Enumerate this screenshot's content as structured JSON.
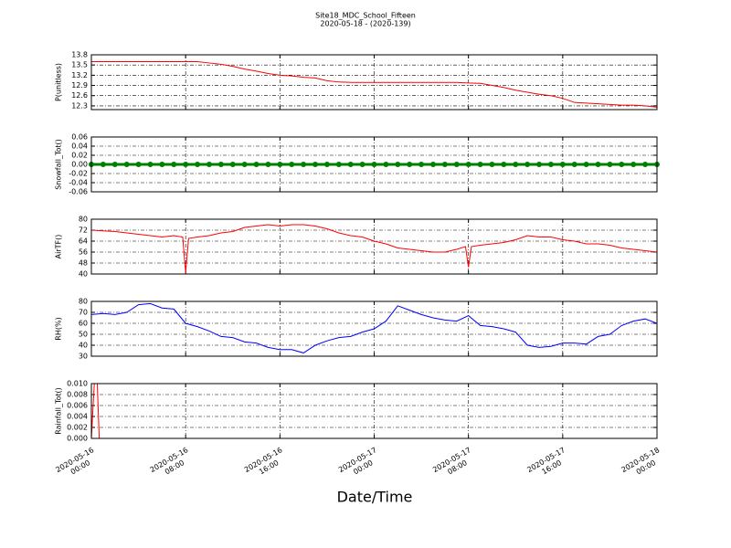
{
  "title": "Site18_MDC_School_Fifteen",
  "subtitle": "2020-05-18 - (2020-139)",
  "chart_data": [
    {
      "type": "line",
      "y_label": "P(unitless)",
      "color": "#ff0000",
      "grid": true,
      "xlim": [
        "2020-05-16 00:00",
        "2020-05-18 00:00"
      ],
      "xticks": [
        "2020-05-16 00:00",
        "2020-05-16 08:00",
        "2020-05-16 16:00",
        "2020-05-17 00:00",
        "2020-05-17 08:00",
        "2020-05-17 16:00",
        "2020-05-18 00:00"
      ],
      "ylim": [
        12.19,
        13.8
      ],
      "yticks": [
        12.3,
        12.6,
        12.9,
        13.2,
        13.5,
        13.8
      ],
      "x": [
        "2020-05-16 00:00",
        "2020-05-16 01:00",
        "2020-05-16 02:00",
        "2020-05-16 03:00",
        "2020-05-16 04:00",
        "2020-05-16 05:00",
        "2020-05-16 06:00",
        "2020-05-16 07:00",
        "2020-05-16 08:00",
        "2020-05-16 09:00",
        "2020-05-16 10:00",
        "2020-05-16 11:00",
        "2020-05-16 12:00",
        "2020-05-16 13:00",
        "2020-05-16 14:00",
        "2020-05-16 15:00",
        "2020-05-16 16:00",
        "2020-05-16 17:00",
        "2020-05-16 18:00",
        "2020-05-16 19:00",
        "2020-05-16 20:00",
        "2020-05-16 21:00",
        "2020-05-16 22:00",
        "2020-05-16 23:00",
        "2020-05-17 00:00",
        "2020-05-17 01:00",
        "2020-05-17 02:00",
        "2020-05-17 03:00",
        "2020-05-17 04:00",
        "2020-05-17 05:00",
        "2020-05-17 06:00",
        "2020-05-17 07:00",
        "2020-05-17 08:00",
        "2020-05-17 09:00",
        "2020-05-17 10:00",
        "2020-05-17 11:00",
        "2020-05-17 12:00",
        "2020-05-17 13:00",
        "2020-05-17 14:00",
        "2020-05-17 15:00",
        "2020-05-17 16:00",
        "2020-05-17 17:00",
        "2020-05-17 18:00",
        "2020-05-17 19:00",
        "2020-05-17 20:00",
        "2020-05-17 21:00",
        "2020-05-17 22:00",
        "2020-05-17 23:00",
        "2020-05-18 00:00"
      ],
      "values": [
        13.6,
        13.6,
        13.6,
        13.6,
        13.6,
        13.6,
        13.6,
        13.6,
        13.6,
        13.6,
        13.56,
        13.52,
        13.46,
        13.38,
        13.32,
        13.25,
        13.2,
        13.18,
        13.14,
        13.12,
        13.04,
        13.0,
        12.99,
        12.99,
        12.99,
        12.99,
        12.99,
        12.99,
        12.99,
        12.99,
        12.99,
        12.99,
        12.97,
        12.96,
        12.9,
        12.84,
        12.76,
        12.7,
        12.64,
        12.6,
        12.52,
        12.4,
        12.38,
        12.36,
        12.34,
        12.32,
        12.32,
        12.3,
        12.26
      ]
    },
    {
      "type": "scatter",
      "y_label": "Snowfall_Tot()",
      "color": "#008000",
      "grid": true,
      "xlim": [
        "2020-05-16 00:00",
        "2020-05-18 00:00"
      ],
      "xticks": [
        "2020-05-16 00:00",
        "2020-05-16 08:00",
        "2020-05-16 16:00",
        "2020-05-17 00:00",
        "2020-05-17 08:00",
        "2020-05-17 16:00",
        "2020-05-18 00:00"
      ],
      "ylim": [
        -0.06,
        0.06
      ],
      "yticks": [
        -0.06,
        -0.04,
        -0.02,
        {
          "value": 0,
          "label": "0.00"
        },
        0.02,
        0.04,
        0.06
      ],
      "x": [
        "2020-05-16 00:00",
        "2020-05-16 01:00",
        "2020-05-16 02:00",
        "2020-05-16 03:00",
        "2020-05-16 04:00",
        "2020-05-16 05:00",
        "2020-05-16 06:00",
        "2020-05-16 07:00",
        "2020-05-16 08:00",
        "2020-05-16 09:00",
        "2020-05-16 10:00",
        "2020-05-16 11:00",
        "2020-05-16 12:00",
        "2020-05-16 13:00",
        "2020-05-16 14:00",
        "2020-05-16 15:00",
        "2020-05-16 16:00",
        "2020-05-16 17:00",
        "2020-05-16 18:00",
        "2020-05-16 19:00",
        "2020-05-16 20:00",
        "2020-05-16 21:00",
        "2020-05-16 22:00",
        "2020-05-16 23:00",
        "2020-05-17 00:00",
        "2020-05-17 01:00",
        "2020-05-17 02:00",
        "2020-05-17 03:00",
        "2020-05-17 04:00",
        "2020-05-17 05:00",
        "2020-05-17 06:00",
        "2020-05-17 07:00",
        "2020-05-17 08:00",
        "2020-05-17 09:00",
        "2020-05-17 10:00",
        "2020-05-17 11:00",
        "2020-05-17 12:00",
        "2020-05-17 13:00",
        "2020-05-17 14:00",
        "2020-05-17 15:00",
        "2020-05-17 16:00",
        "2020-05-17 17:00",
        "2020-05-17 18:00",
        "2020-05-17 19:00",
        "2020-05-17 20:00",
        "2020-05-17 21:00",
        "2020-05-17 22:00",
        "2020-05-17 23:00",
        "2020-05-18 00:00"
      ],
      "values": [
        0,
        0,
        0,
        0,
        0,
        0,
        0,
        0,
        0,
        0,
        0,
        0,
        0,
        0,
        0,
        0,
        0,
        0,
        0,
        0,
        0,
        0,
        0,
        0,
        0,
        0,
        0,
        0,
        0,
        0,
        0,
        0,
        0,
        0,
        0,
        0,
        0,
        0,
        0,
        0,
        0,
        0,
        0,
        0,
        0,
        0,
        0,
        0,
        0
      ]
    },
    {
      "type": "line",
      "y_label": "AirTF()",
      "color": "#ff0000",
      "grid": true,
      "xlim": [
        "2020-05-16 00:00",
        "2020-05-18 00:00"
      ],
      "xticks": [
        "2020-05-16 00:00",
        "2020-05-16 08:00",
        "2020-05-16 16:00",
        "2020-05-17 00:00",
        "2020-05-17 08:00",
        "2020-05-17 16:00",
        "2020-05-18 00:00"
      ],
      "ylim": [
        40,
        80
      ],
      "yticks": [
        40,
        48,
        56,
        64,
        72,
        80
      ],
      "x": [
        "2020-05-16 00:00",
        "2020-05-16 01:00",
        "2020-05-16 02:00",
        "2020-05-16 03:00",
        "2020-05-16 04:00",
        "2020-05-16 05:00",
        "2020-05-16 06:00",
        "2020-05-16 07:00",
        "2020-05-16 07:45",
        "2020-05-16 08:00",
        "2020-05-16 08:15",
        "2020-05-16 09:00",
        "2020-05-16 10:00",
        "2020-05-16 11:00",
        "2020-05-16 12:00",
        "2020-05-16 13:00",
        "2020-05-16 14:00",
        "2020-05-16 15:00",
        "2020-05-16 16:00",
        "2020-05-16 17:00",
        "2020-05-16 18:00",
        "2020-05-16 19:00",
        "2020-05-16 20:00",
        "2020-05-16 21:00",
        "2020-05-16 22:00",
        "2020-05-16 23:00",
        "2020-05-17 00:00",
        "2020-05-17 01:00",
        "2020-05-17 02:00",
        "2020-05-17 03:00",
        "2020-05-17 04:00",
        "2020-05-17 05:00",
        "2020-05-17 06:00",
        "2020-05-17 07:00",
        "2020-05-17 07:45",
        "2020-05-17 08:00",
        "2020-05-17 08:15",
        "2020-05-17 09:00",
        "2020-05-17 10:00",
        "2020-05-17 11:00",
        "2020-05-17 12:00",
        "2020-05-17 13:00",
        "2020-05-17 14:00",
        "2020-05-17 15:00",
        "2020-05-17 16:00",
        "2020-05-17 17:00",
        "2020-05-17 18:00",
        "2020-05-17 19:00",
        "2020-05-17 20:00",
        "2020-05-17 21:00",
        "2020-05-17 22:00",
        "2020-05-17 23:00",
        "2020-05-18 00:00"
      ],
      "values": [
        72,
        71.5,
        71,
        70,
        69,
        68,
        67,
        68,
        67,
        41,
        66,
        67,
        68,
        70,
        71,
        74,
        75,
        76,
        75,
        76,
        76,
        75,
        73,
        70,
        68,
        67,
        64,
        62,
        59,
        58,
        57,
        56,
        56,
        58,
        60,
        45,
        60,
        61,
        62,
        63,
        65,
        68,
        67,
        67,
        65,
        64,
        62,
        62,
        61,
        59,
        58,
        57,
        56
      ]
    },
    {
      "type": "line",
      "y_label": "RH(%)",
      "color": "#0000ff",
      "grid": true,
      "xlim": [
        "2020-05-16 00:00",
        "2020-05-18 00:00"
      ],
      "xticks": [
        "2020-05-16 00:00",
        "2020-05-16 08:00",
        "2020-05-16 16:00",
        "2020-05-17 00:00",
        "2020-05-17 08:00",
        "2020-05-17 16:00",
        "2020-05-18 00:00"
      ],
      "ylim": [
        30,
        80
      ],
      "yticks": [
        30,
        40,
        50,
        60,
        70,
        80
      ],
      "x": [
        "2020-05-16 00:00",
        "2020-05-16 01:00",
        "2020-05-16 02:00",
        "2020-05-16 03:00",
        "2020-05-16 04:00",
        "2020-05-16 05:00",
        "2020-05-16 06:00",
        "2020-05-16 07:00",
        "2020-05-16 08:00",
        "2020-05-16 09:00",
        "2020-05-16 10:00",
        "2020-05-16 11:00",
        "2020-05-16 12:00",
        "2020-05-16 13:00",
        "2020-05-16 14:00",
        "2020-05-16 15:00",
        "2020-05-16 16:00",
        "2020-05-16 17:00",
        "2020-05-16 18:00",
        "2020-05-16 19:00",
        "2020-05-16 20:00",
        "2020-05-16 21:00",
        "2020-05-16 22:00",
        "2020-05-16 23:00",
        "2020-05-17 00:00",
        "2020-05-17 01:00",
        "2020-05-17 02:00",
        "2020-05-17 03:00",
        "2020-05-17 04:00",
        "2020-05-17 05:00",
        "2020-05-17 06:00",
        "2020-05-17 07:00",
        "2020-05-17 08:00",
        "2020-05-17 09:00",
        "2020-05-17 10:00",
        "2020-05-17 11:00",
        "2020-05-17 12:00",
        "2020-05-17 13:00",
        "2020-05-17 14:00",
        "2020-05-17 15:00",
        "2020-05-17 16:00",
        "2020-05-17 17:00",
        "2020-05-17 18:00",
        "2020-05-17 19:00",
        "2020-05-17 20:00",
        "2020-05-17 21:00",
        "2020-05-17 22:00",
        "2020-05-17 23:00",
        "2020-05-18 00:00"
      ],
      "values": [
        68,
        69,
        68,
        70,
        77,
        78,
        74,
        73,
        60,
        57,
        53,
        48,
        47,
        43,
        42,
        38,
        36,
        36,
        33,
        40,
        44,
        47,
        48,
        52,
        55,
        62,
        76,
        72,
        68,
        65,
        63,
        62,
        67,
        58,
        57,
        55,
        52,
        40,
        38,
        39,
        42,
        42,
        41,
        48,
        50,
        58,
        62,
        64,
        60
      ]
    },
    {
      "type": "line",
      "y_label": "Rainfall_Tot()",
      "x_label": "Date/Time",
      "color": "#ff0000",
      "grid": true,
      "xlim": [
        "2020-05-16 00:00",
        "2020-05-18 00:00"
      ],
      "xticks": [
        {
          "value": "2020-05-16 00:00",
          "label": [
            "2020-05-16",
            "00:00"
          ]
        },
        {
          "value": "2020-05-16 08:00",
          "label": [
            "2020-05-16",
            "08:00"
          ]
        },
        {
          "value": "2020-05-16 16:00",
          "label": [
            "2020-05-16",
            "16:00"
          ]
        },
        {
          "value": "2020-05-17 00:00",
          "label": [
            "2020-05-17",
            "00:00"
          ]
        },
        {
          "value": "2020-05-17 08:00",
          "label": [
            "2020-05-17",
            "08:00"
          ]
        },
        {
          "value": "2020-05-17 16:00",
          "label": [
            "2020-05-17",
            "16:00"
          ]
        },
        {
          "value": "2020-05-18 00:00",
          "label": [
            "2020-05-18",
            "00:00"
          ]
        }
      ],
      "ylim": [
        0,
        0.01
      ],
      "yticks": [
        {
          "value": 0,
          "label": "0.000"
        },
        {
          "value": 0.002,
          "label": "0.002"
        },
        {
          "value": 0.004,
          "label": "0.004"
        },
        {
          "value": 0.006,
          "label": "0.006"
        },
        {
          "value": 0.008,
          "label": "0.008"
        },
        {
          "value": 0.01,
          "label": "0.010"
        }
      ],
      "x": [
        "2020-05-16 00:00",
        "2020-05-16 00:15",
        "2020-05-16 00:30",
        "2020-05-16 00:40",
        "2020-05-16 01:00",
        "2020-05-18 00:00"
      ],
      "values": [
        0,
        0.01,
        0.01,
        0,
        0,
        0
      ]
    }
  ]
}
